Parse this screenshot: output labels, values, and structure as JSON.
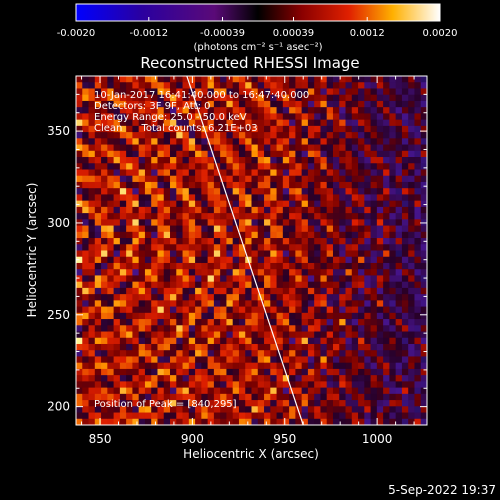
{
  "chart_data": {
    "type": "heatmap",
    "title": "Reconstructed RHESSI Image",
    "xlabel": "Heliocentric X (arcsec)",
    "ylabel": "Heliocentric Y (arcsec)",
    "xlim": [
      837,
      1027
    ],
    "ylim": [
      190,
      380
    ],
    "xticks": [
      850,
      900,
      950,
      1000
    ],
    "yticks": [
      200,
      250,
      300,
      350
    ],
    "colorbar": {
      "range": [
        -0.002,
        0.002
      ],
      "tick_values": [
        -0.002,
        -0.0012,
        -0.00039,
        0.00039,
        0.0012,
        0.002
      ],
      "tick_labels": [
        "-0.0020",
        "-0.0012",
        "-0.00039",
        "0.00039",
        "0.0012",
        "0.0020"
      ],
      "unit_label": "(photons cm⁻² s⁻¹ asec⁻²)",
      "colormap": "dark blue → purple → red → orange → yellow → white"
    },
    "annotations": [
      "10-Jan-2017 16:41:40.000 to 16:47:40.000",
      "Detectors: 3F 9F, Att: 0",
      "Energy Range: 25.0 - 50.0 keV",
      "Clean      Total counts: 6.21E+03"
    ],
    "peak_label": "Position of Peak = [840,295]",
    "peak": {
      "x": 840,
      "y": 295
    },
    "limb_line": [
      {
        "x": 897,
        "y": 380
      },
      {
        "x": 960,
        "y": 190
      }
    ]
  },
  "footer": {
    "timestamp": "5-Sep-2022 19:37"
  }
}
